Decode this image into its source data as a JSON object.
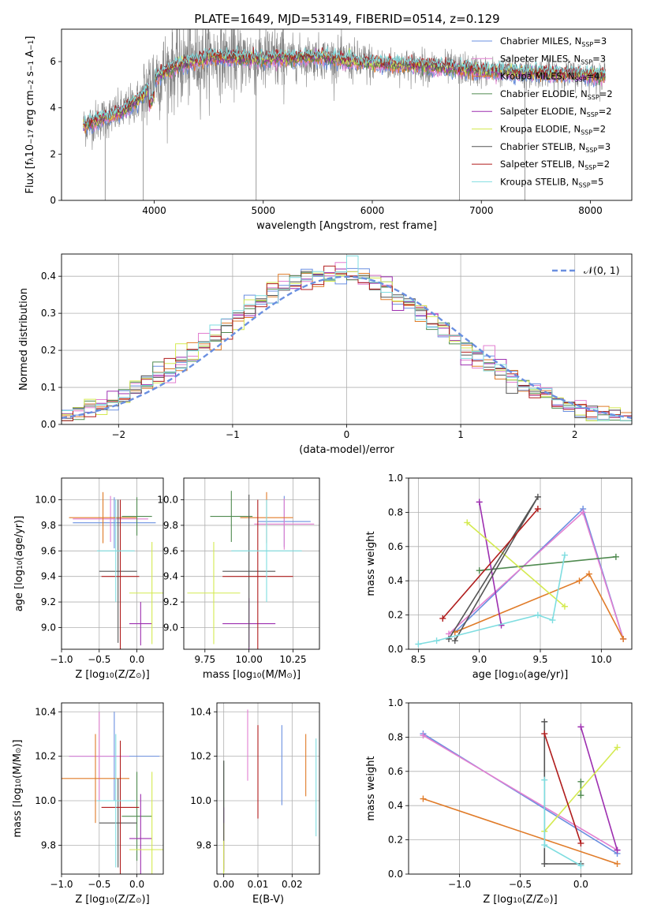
{
  "figure_title": "PLATE=1649, MJD=53149, FIBERID=0514, z=0.129",
  "colors": {
    "chabrier_miles": "#6a8fe0",
    "salpeter_miles": "#e27fd0",
    "kroupa_miles": "#e07b28",
    "chabrier_elodie": "#4f8a4f",
    "salpeter_elodie": "#9d2fb0",
    "kroupa_elodie": "#d4ea50",
    "chabrier_stelib": "#555555",
    "salpeter_stelib": "#b01c1c",
    "kroupa_stelib": "#7fdde0",
    "observed": "#808080",
    "grid": "#b0b0b0"
  },
  "chart_data": [
    {
      "id": "spectrum",
      "type": "line",
      "xlabel": "wavelength [Angstrom, rest frame]",
      "ylabel_parts": [
        "Flux [f",
        "λ",
        "10",
        "−17",
        " erg cm",
        "−2",
        " s",
        "−1",
        " A",
        "−1",
        "]"
      ],
      "xlim": [
        3150,
        8380
      ],
      "ylim": [
        0,
        7.4
      ],
      "xticks": [
        4000,
        5000,
        6000,
        7000,
        8000
      ],
      "yticks": [
        0,
        2,
        4,
        6
      ],
      "legend_position": "upper right",
      "legend": [
        {
          "key": "chabrier_miles",
          "label": "Chabrier MILES, N",
          "sub": "SSP",
          "suffix": "=3"
        },
        {
          "key": "salpeter_miles",
          "label": "Salpeter MILES, N",
          "sub": "SSP",
          "suffix": "=3"
        },
        {
          "key": "kroupa_miles",
          "label": "Kroupa MILES, N",
          "sub": "SSP",
          "suffix": "=4"
        },
        {
          "key": "chabrier_elodie",
          "label": "Chabrier ELODIE, N",
          "sub": "SSP",
          "suffix": "=2"
        },
        {
          "key": "salpeter_elodie",
          "label": "Salpeter ELODIE, N",
          "sub": "SSP",
          "suffix": "=2"
        },
        {
          "key": "kroupa_elodie",
          "label": "Kroupa ELODIE, N",
          "sub": "SSP",
          "suffix": "=2"
        },
        {
          "key": "chabrier_stelib",
          "label": "Chabrier STELIB, N",
          "sub": "SSP",
          "suffix": "=3"
        },
        {
          "key": "salpeter_stelib",
          "label": "Salpeter STELIB, N",
          "sub": "SSP",
          "suffix": "=2"
        },
        {
          "key": "kroupa_stelib",
          "label": "Kroupa STELIB, N",
          "sub": "SSP",
          "suffix": "=5"
        }
      ],
      "continuum": [
        [
          3350,
          3.2
        ],
        [
          3500,
          3.5
        ],
        [
          3700,
          3.8
        ],
        [
          3900,
          4.5
        ],
        [
          4000,
          5.3
        ],
        [
          4200,
          5.8
        ],
        [
          4500,
          6.2
        ],
        [
          5000,
          6.1
        ],
        [
          5500,
          6.2
        ],
        [
          6000,
          5.9
        ],
        [
          6500,
          5.8
        ],
        [
          7000,
          5.6
        ],
        [
          7500,
          5.5
        ],
        [
          8000,
          5.4
        ],
        [
          8140,
          5.4
        ]
      ]
    },
    {
      "id": "residuals",
      "type": "step",
      "xlabel": "(data-model)/error",
      "ylabel": "Normed distribution",
      "xlim": [
        -2.5,
        2.5
      ],
      "ylim": [
        0,
        0.46
      ],
      "xticks": [
        -2,
        -1,
        0,
        1,
        2
      ],
      "yticks": [
        0.0,
        0.1,
        0.2,
        0.3,
        0.4
      ],
      "bin_width": 0.1,
      "legend_position": "upper right",
      "legend_label": "𝒩(0, 1)",
      "gaussian": {
        "mu": 0,
        "sigma": 1
      }
    },
    {
      "id": "age_vs_z",
      "type": "errorbar",
      "xlabel_parts": [
        "Z [log",
        "10",
        "(Z/Z",
        "⊙",
        ")]"
      ],
      "ylabel_parts": [
        "age  [log",
        "10",
        "(age/yr)]"
      ],
      "xlim": [
        -1.0,
        0.35
      ],
      "ylim": [
        8.83,
        10.17
      ],
      "xticks": [
        -1.0,
        -0.5,
        0.0
      ],
      "yticks": [
        9.0,
        9.2,
        9.4,
        9.6,
        9.8,
        10.0
      ],
      "points": [
        {
          "key": "chabrier_miles",
          "x": -0.3,
          "xerr": 0.55,
          "y": 9.82,
          "yerr": 0.2
        },
        {
          "key": "salpeter_miles",
          "x": -0.35,
          "xerr": 0.5,
          "y": 9.85,
          "yerr": 0.18
        },
        {
          "key": "kroupa_miles",
          "x": -0.45,
          "xerr": 0.45,
          "y": 9.86,
          "yerr": 0.2
        },
        {
          "key": "chabrier_elodie",
          "x": 0.0,
          "xerr": 0.2,
          "y": 9.87,
          "yerr": 0.15
        },
        {
          "key": "salpeter_elodie",
          "x": 0.05,
          "xerr": 0.15,
          "y": 9.03,
          "yerr": 0.17
        },
        {
          "key": "kroupa_elodie",
          "x": 0.2,
          "xerr": 0.3,
          "y": 9.27,
          "yerr": 0.4
        },
        {
          "key": "chabrier_stelib",
          "x": -0.25,
          "xerr": 0.25,
          "y": 9.44,
          "yerr": 0.56
        },
        {
          "key": "salpeter_stelib",
          "x": -0.22,
          "xerr": 0.25,
          "y": 9.4,
          "yerr": 0.6
        },
        {
          "key": "kroupa_stelib",
          "x": -0.28,
          "xerr": 0.25,
          "y": 9.6,
          "yerr": 0.4
        }
      ]
    },
    {
      "id": "age_vs_mass",
      "type": "errorbar",
      "xlabel_parts": [
        "mass [log",
        "10",
        "(M/M",
        "⊙",
        ")]"
      ],
      "ylabel_parts": [],
      "xlim": [
        9.63,
        10.4
      ],
      "ylim": [
        8.83,
        10.17
      ],
      "xticks": [
        9.75,
        10.0,
        10.25
      ],
      "yticks": [
        9.0,
        9.2,
        9.4,
        9.6,
        9.8,
        10.0
      ],
      "points": [
        {
          "key": "chabrier_miles",
          "x": 10.2,
          "xerr": 0.15,
          "y": 9.83,
          "yerr": 0.2
        },
        {
          "key": "salpeter_miles",
          "x": 10.2,
          "xerr": 0.17,
          "y": 9.81,
          "yerr": 0.2
        },
        {
          "key": "kroupa_miles",
          "x": 10.1,
          "xerr": 0.15,
          "y": 9.86,
          "yerr": 0.2
        },
        {
          "key": "chabrier_elodie",
          "x": 9.9,
          "xerr": 0.12,
          "y": 9.87,
          "yerr": 0.2
        },
        {
          "key": "salpeter_elodie",
          "x": 10.0,
          "xerr": 0.15,
          "y": 9.03,
          "yerr": 0.2
        },
        {
          "key": "kroupa_elodie",
          "x": 9.8,
          "xerr": 0.15,
          "y": 9.27,
          "yerr": 0.4
        },
        {
          "key": "chabrier_stelib",
          "x": 10.0,
          "xerr": 0.15,
          "y": 9.44,
          "yerr": 0.6
        },
        {
          "key": "salpeter_stelib",
          "x": 10.05,
          "xerr": 0.2,
          "y": 9.4,
          "yerr": 0.6
        },
        {
          "key": "kroupa_stelib",
          "x": 10.1,
          "xerr": 0.2,
          "y": 9.6,
          "yerr": 0.4
        }
      ]
    },
    {
      "id": "weight_vs_age",
      "type": "line",
      "xlabel_parts": [
        "age  [log",
        "10",
        "(age/yr)]"
      ],
      "ylabel": "mass weight",
      "xlim": [
        8.42,
        10.25
      ],
      "ylim": [
        0,
        1
      ],
      "xticks": [
        8.5,
        9.0,
        9.5,
        10.0
      ],
      "yticks": [
        0.0,
        0.2,
        0.4,
        0.6,
        0.8,
        1.0
      ],
      "series": [
        {
          "key": "chabrier_miles",
          "x": [
            8.8,
            9.85,
            10.18
          ],
          "y": [
            0.1,
            0.82,
            0.06
          ]
        },
        {
          "key": "salpeter_miles",
          "x": [
            8.75,
            9.85,
            10.18
          ],
          "y": [
            0.09,
            0.8,
            0.06
          ]
        },
        {
          "key": "kroupa_miles",
          "x": [
            8.8,
            9.82,
            9.9,
            10.18
          ],
          "y": [
            0.1,
            0.4,
            0.44,
            0.06
          ]
        },
        {
          "key": "chabrier_elodie",
          "x": [
            9.0,
            10.12
          ],
          "y": [
            0.46,
            0.54
          ]
        },
        {
          "key": "salpeter_elodie",
          "x": [
            9.0,
            9.18
          ],
          "y": [
            0.86,
            0.14
          ]
        },
        {
          "key": "kroupa_elodie",
          "x": [
            8.9,
            9.7
          ],
          "y": [
            0.74,
            0.25
          ]
        },
        {
          "key": "chabrier_stelib",
          "x": [
            8.8,
            9.48,
            8.75
          ],
          "y": [
            0.05,
            0.89,
            0.06
          ]
        },
        {
          "key": "salpeter_stelib",
          "x": [
            8.7,
            9.48
          ],
          "y": [
            0.18,
            0.82
          ]
        },
        {
          "key": "kroupa_stelib",
          "x": [
            8.5,
            8.65,
            9.48,
            9.6,
            9.7
          ],
          "y": [
            0.03,
            0.05,
            0.2,
            0.17,
            0.55
          ]
        }
      ]
    },
    {
      "id": "mass_vs_z",
      "type": "errorbar",
      "xlabel_parts": [
        "Z [log",
        "10",
        "(Z/Z",
        "⊙",
        ")]"
      ],
      "ylabel_parts": [
        "mass [log",
        "10",
        "(M/M",
        "⊙",
        ")]"
      ],
      "xlim": [
        -1.0,
        0.35
      ],
      "ylim": [
        9.67,
        10.44
      ],
      "xticks": [
        -1.0,
        -0.5,
        0.0
      ],
      "yticks": [
        9.8,
        10.0,
        10.2,
        10.4
      ],
      "points": [
        {
          "key": "chabrier_miles",
          "x": -0.3,
          "xerr": 0.6,
          "y": 10.2,
          "yerr": 0.2
        },
        {
          "key": "salpeter_miles",
          "x": -0.5,
          "xerr": 0.4,
          "y": 10.2,
          "yerr": 0.2
        },
        {
          "key": "kroupa_miles",
          "x": -0.55,
          "xerr": 0.45,
          "y": 10.1,
          "yerr": 0.2
        },
        {
          "key": "chabrier_elodie",
          "x": 0.0,
          "xerr": 0.2,
          "y": 9.93,
          "yerr": 0.2
        },
        {
          "key": "salpeter_elodie",
          "x": 0.05,
          "xerr": 0.15,
          "y": 9.83,
          "yerr": 0.2
        },
        {
          "key": "kroupa_elodie",
          "x": 0.2,
          "xerr": 0.3,
          "y": 9.78,
          "yerr": 0.35
        },
        {
          "key": "chabrier_stelib",
          "x": -0.25,
          "xerr": 0.25,
          "y": 9.9,
          "yerr": 0.2
        },
        {
          "key": "salpeter_stelib",
          "x": -0.22,
          "xerr": 0.25,
          "y": 9.97,
          "yerr": 0.3
        },
        {
          "key": "kroupa_stelib",
          "x": -0.28,
          "xerr": 0.25,
          "y": 10.0,
          "yerr": 0.3
        }
      ]
    },
    {
      "id": "mass_vs_ebv",
      "type": "errorbar",
      "xlabel": "E(B-V)",
      "xlim": [
        -0.002,
        0.028
      ],
      "ylim": [
        9.67,
        10.44
      ],
      "xticks": [
        0.0,
        0.01,
        0.02
      ],
      "yticks": [
        9.8,
        10.0,
        10.2,
        10.4
      ],
      "points": [
        {
          "key": "chabrier_miles",
          "x": 0.017,
          "y": 10.16,
          "yerr": 0.18
        },
        {
          "key": "salpeter_miles",
          "x": 0.007,
          "y": 10.25,
          "yerr": 0.16
        },
        {
          "key": "kroupa_miles",
          "x": 0.024,
          "y": 10.16,
          "yerr": 0.14
        },
        {
          "key": "chabrier_elodie",
          "x": 0.0,
          "y": 9.93,
          "yerr": 0.25
        },
        {
          "key": "salpeter_elodie",
          "x": 0.0,
          "y": 9.83,
          "yerr": 0.14
        },
        {
          "key": "kroupa_elodie",
          "x": 0.0,
          "y": 9.78,
          "yerr": 0.12
        },
        {
          "key": "chabrier_stelib",
          "x": 0.0,
          "y": 10.0,
          "yerr": 0.18
        },
        {
          "key": "salpeter_stelib",
          "x": 0.01,
          "y": 10.13,
          "yerr": 0.21
        },
        {
          "key": "kroupa_stelib",
          "x": 0.027,
          "y": 10.06,
          "yerr": 0.22
        }
      ]
    },
    {
      "id": "weight_vs_z",
      "type": "line",
      "xlabel_parts": [
        "Z [log",
        "10",
        "(Z/Z",
        "⊙",
        ")]"
      ],
      "ylabel": "mass weight",
      "xlim": [
        -1.42,
        0.42
      ],
      "ylim": [
        0,
        1
      ],
      "xticks": [
        -1.0,
        -0.5,
        0.0
      ],
      "yticks": [
        0.0,
        0.2,
        0.4,
        0.6,
        0.8,
        1.0
      ],
      "series": [
        {
          "key": "chabrier_miles",
          "x": [
            -1.3,
            0.3
          ],
          "y": [
            0.82,
            0.12
          ]
        },
        {
          "key": "salpeter_miles",
          "x": [
            -1.3,
            0.3
          ],
          "y": [
            0.81,
            0.14
          ]
        },
        {
          "key": "kroupa_miles",
          "x": [
            -1.3,
            0.3
          ],
          "y": [
            0.44,
            0.06
          ]
        },
        {
          "key": "chabrier_elodie",
          "x": [
            0.0,
            0.0
          ],
          "y": [
            0.46,
            0.54
          ]
        },
        {
          "key": "salpeter_elodie",
          "x": [
            0.0,
            0.3
          ],
          "y": [
            0.86,
            0.14
          ]
        },
        {
          "key": "kroupa_elodie",
          "x": [
            -0.3,
            0.3
          ],
          "y": [
            0.25,
            0.74
          ]
        },
        {
          "key": "chabrier_stelib",
          "x": [
            0.0,
            -0.3,
            -0.3
          ],
          "y": [
            0.06,
            0.06,
            0.89
          ]
        },
        {
          "key": "salpeter_stelib",
          "x": [
            -0.3,
            0.0
          ],
          "y": [
            0.82,
            0.18
          ]
        },
        {
          "key": "kroupa_stelib",
          "x": [
            -0.3,
            -0.3,
            0.0
          ],
          "y": [
            0.55,
            0.17,
            0.05
          ]
        }
      ]
    }
  ]
}
